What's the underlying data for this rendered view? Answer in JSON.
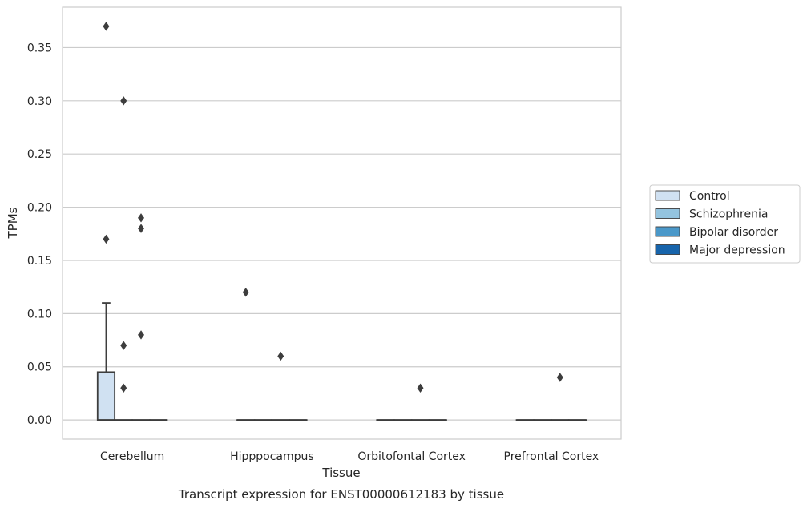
{
  "chart_data": {
    "type": "box",
    "caption": "Transcript expression for ENST00000612183 by tissue",
    "xlabel": "Tissue",
    "ylabel": "TPMs",
    "ylim": [
      -0.018,
      0.388
    ],
    "yticks": [
      0.0,
      0.05,
      0.1,
      0.15,
      0.2,
      0.25,
      0.3,
      0.35
    ],
    "ytick_labels": [
      "0.00",
      "0.05",
      "0.10",
      "0.15",
      "0.20",
      "0.25",
      "0.30",
      "0.35"
    ],
    "grid": true,
    "legend_position": "right",
    "categories": [
      "Cerebellum",
      "Hipppocampus",
      "Orbitofontal Cortex",
      "Prefrontal Cortex"
    ],
    "series": [
      {
        "name": "Control",
        "color": "#d0e1f2",
        "boxes": [
          {
            "q1": 0.0,
            "median": 0.0,
            "q3": 0.045,
            "whisker_low": 0.0,
            "whisker_high": 0.11,
            "outliers": [
              0.17,
              0.37
            ]
          },
          {
            "q1": 0.0,
            "median": 0.0,
            "q3": 0.0,
            "whisker_low": 0.0,
            "whisker_high": 0.0,
            "outliers": [
              0.12
            ]
          },
          {
            "q1": 0.0,
            "median": 0.0,
            "q3": 0.0,
            "whisker_low": 0.0,
            "whisker_high": 0.0,
            "outliers": []
          },
          {
            "q1": 0.0,
            "median": 0.0,
            "q3": 0.0,
            "whisker_low": 0.0,
            "whisker_high": 0.0,
            "outliers": []
          }
        ]
      },
      {
        "name": "Schizophrenia",
        "color": "#94c4df",
        "boxes": [
          {
            "q1": 0.0,
            "median": 0.0,
            "q3": 0.0,
            "whisker_low": 0.0,
            "whisker_high": 0.0,
            "outliers": [
              0.03,
              0.07,
              0.3
            ]
          },
          {
            "q1": 0.0,
            "median": 0.0,
            "q3": 0.0,
            "whisker_low": 0.0,
            "whisker_high": 0.0,
            "outliers": []
          },
          {
            "q1": 0.0,
            "median": 0.0,
            "q3": 0.0,
            "whisker_low": 0.0,
            "whisker_high": 0.0,
            "outliers": []
          },
          {
            "q1": 0.0,
            "median": 0.0,
            "q3": 0.0,
            "whisker_low": 0.0,
            "whisker_high": 0.0,
            "outliers": []
          }
        ]
      },
      {
        "name": "Bipolar disorder",
        "color": "#4a98c9",
        "boxes": [
          {
            "q1": 0.0,
            "median": 0.0,
            "q3": 0.0,
            "whisker_low": 0.0,
            "whisker_high": 0.0,
            "outliers": [
              0.08,
              0.18,
              0.19
            ]
          },
          {
            "q1": 0.0,
            "median": 0.0,
            "q3": 0.0,
            "whisker_low": 0.0,
            "whisker_high": 0.0,
            "outliers": [
              0.06
            ]
          },
          {
            "q1": 0.0,
            "median": 0.0,
            "q3": 0.0,
            "whisker_low": 0.0,
            "whisker_high": 0.0,
            "outliers": [
              0.03
            ]
          },
          {
            "q1": 0.0,
            "median": 0.0,
            "q3": 0.0,
            "whisker_low": 0.0,
            "whisker_high": 0.0,
            "outliers": [
              0.04
            ]
          }
        ]
      },
      {
        "name": "Major depression",
        "color": "#1764ab",
        "boxes": [
          {
            "q1": 0.0,
            "median": 0.0,
            "q3": 0.0,
            "whisker_low": 0.0,
            "whisker_high": 0.0,
            "outliers": []
          },
          {
            "q1": 0.0,
            "median": 0.0,
            "q3": 0.0,
            "whisker_low": 0.0,
            "whisker_high": 0.0,
            "outliers": []
          },
          {
            "q1": 0.0,
            "median": 0.0,
            "q3": 0.0,
            "whisker_low": 0.0,
            "whisker_high": 0.0,
            "outliers": []
          },
          {
            "q1": 0.0,
            "median": 0.0,
            "q3": 0.0,
            "whisker_low": 0.0,
            "whisker_high": 0.0,
            "outliers": []
          }
        ]
      }
    ]
  }
}
